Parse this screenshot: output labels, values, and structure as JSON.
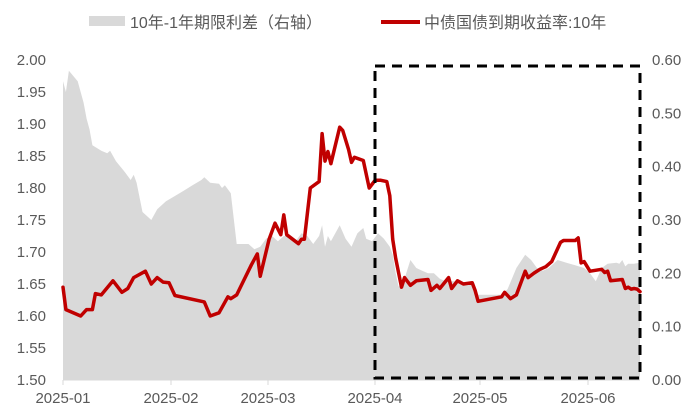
{
  "chart_data": {
    "type": "line+area",
    "title": "",
    "legend": [
      {
        "name": "10年-1年期限利差（右轴）",
        "type": "area",
        "color": "#D9D9D9",
        "axis": "right"
      },
      {
        "name": "中债国债到期收益率:10年",
        "type": "line",
        "color": "#C00000",
        "axis": "left"
      }
    ],
    "legend_position": "top",
    "grid": false,
    "x_ticks": [
      "2025-01",
      "2025-02",
      "2025-03",
      "2025-04",
      "2025-05",
      "2025-06"
    ],
    "y_left": {
      "ticks": [
        "1.50",
        "1.55",
        "1.60",
        "1.65",
        "1.70",
        "1.75",
        "1.80",
        "1.85",
        "1.90",
        "1.95",
        "2.00"
      ],
      "range": [
        1.5,
        2.0
      ]
    },
    "y_right": {
      "ticks": [
        "0.00",
        "0.10",
        "0.20",
        "0.30",
        "0.40",
        "0.50",
        "0.60"
      ],
      "range": [
        0.0,
        0.6
      ]
    },
    "x_date_range": [
      "2025-01-02",
      "2025-06-25"
    ],
    "series": [
      {
        "name": "中债国债到期收益率:10年",
        "axis": "left",
        "points": [
          [
            0,
            1.645
          ],
          [
            1,
            1.61
          ],
          [
            6,
            1.6
          ],
          [
            8,
            1.61
          ],
          [
            10,
            1.61
          ],
          [
            11,
            1.635
          ],
          [
            13,
            1.633
          ],
          [
            17,
            1.655
          ],
          [
            20,
            1.637
          ],
          [
            22,
            1.643
          ],
          [
            24,
            1.66
          ],
          [
            28,
            1.67
          ],
          [
            30,
            1.65
          ],
          [
            32,
            1.66
          ],
          [
            34,
            1.653
          ],
          [
            36,
            1.652
          ],
          [
            38,
            1.632
          ],
          [
            48,
            1.622
          ],
          [
            50,
            1.6
          ],
          [
            53,
            1.605
          ],
          [
            56,
            1.63
          ],
          [
            57,
            1.627
          ],
          [
            59,
            1.633
          ],
          [
            61,
            1.652
          ],
          [
            64,
            1.68
          ],
          [
            66,
            1.697
          ],
          [
            67,
            1.662
          ],
          [
            70,
            1.72
          ],
          [
            72,
            1.745
          ],
          [
            74,
            1.727
          ],
          [
            75,
            1.758
          ],
          [
            76,
            1.727
          ],
          [
            80,
            1.713
          ],
          [
            81,
            1.72
          ],
          [
            82,
            1.72
          ],
          [
            84,
            1.8
          ],
          [
            87,
            1.81
          ],
          [
            88,
            1.885
          ],
          [
            89,
            1.842
          ],
          [
            90,
            1.857
          ],
          [
            91,
            1.838
          ],
          [
            94,
            1.895
          ],
          [
            95,
            1.89
          ],
          [
            97,
            1.86
          ],
          [
            98,
            1.84
          ],
          [
            99,
            1.848
          ],
          [
            102,
            1.843
          ],
          [
            104,
            1.8
          ],
          [
            106,
            1.812
          ],
          [
            108,
            1.812
          ],
          [
            110,
            1.81
          ],
          [
            111,
            1.788
          ],
          [
            112,
            1.72
          ],
          [
            113,
            1.69
          ],
          [
            115,
            1.645
          ],
          [
            116,
            1.66
          ],
          [
            118,
            1.648
          ],
          [
            120,
            1.655
          ],
          [
            124,
            1.657
          ],
          [
            125,
            1.64
          ],
          [
            127,
            1.648
          ],
          [
            128,
            1.643
          ],
          [
            131,
            1.66
          ],
          [
            132,
            1.643
          ],
          [
            134,
            1.655
          ],
          [
            136,
            1.65
          ],
          [
            139,
            1.652
          ],
          [
            140,
            1.64
          ],
          [
            141,
            1.623
          ],
          [
            149,
            1.63
          ],
          [
            150,
            1.637
          ],
          [
            152,
            1.627
          ],
          [
            154,
            1.633
          ],
          [
            157,
            1.67
          ],
          [
            158,
            1.66
          ],
          [
            160,
            1.667
          ],
          [
            162,
            1.673
          ],
          [
            164,
            1.677
          ],
          [
            166,
            1.685
          ],
          [
            169,
            1.715
          ],
          [
            170,
            1.718
          ],
          [
            174,
            1.718
          ],
          [
            175,
            1.722
          ],
          [
            176,
            1.683
          ],
          [
            177,
            1.685
          ],
          [
            179,
            1.67
          ],
          [
            183,
            1.673
          ],
          [
            184,
            1.668
          ],
          [
            185,
            1.67
          ],
          [
            186,
            1.655
          ],
          [
            190,
            1.657
          ],
          [
            191,
            1.643
          ],
          [
            192,
            1.645
          ],
          [
            193,
            1.642
          ],
          [
            194,
            1.643
          ],
          [
            195,
            1.642
          ],
          [
            196,
            1.638
          ]
        ]
      },
      {
        "name": "10年-1年期限利差（右轴）",
        "axis": "right",
        "points": [
          [
            0,
            0.56
          ],
          [
            1,
            0.54
          ],
          [
            2,
            0.58
          ],
          [
            5,
            0.56
          ],
          [
            7,
            0.52
          ],
          [
            8,
            0.49
          ],
          [
            9,
            0.47
          ],
          [
            10,
            0.44
          ],
          [
            13,
            0.43
          ],
          [
            15,
            0.425
          ],
          [
            16,
            0.43
          ],
          [
            18,
            0.41
          ],
          [
            21,
            0.39
          ],
          [
            23,
            0.375
          ],
          [
            24,
            0.385
          ],
          [
            25,
            0.37
          ],
          [
            27,
            0.315
          ],
          [
            30,
            0.3
          ],
          [
            32,
            0.32
          ],
          [
            35,
            0.335
          ],
          [
            38,
            0.345
          ],
          [
            41,
            0.355
          ],
          [
            44,
            0.365
          ],
          [
            47,
            0.375
          ],
          [
            48,
            0.38
          ],
          [
            50,
            0.37
          ],
          [
            53,
            0.368
          ],
          [
            54,
            0.36
          ],
          [
            55,
            0.365
          ],
          [
            57,
            0.35
          ],
          [
            59,
            0.255
          ],
          [
            61,
            0.255
          ],
          [
            63,
            0.255
          ],
          [
            65,
            0.245
          ],
          [
            67,
            0.25
          ],
          [
            69,
            0.265
          ],
          [
            71,
            0.27
          ],
          [
            73,
            0.26
          ],
          [
            75,
            0.27
          ],
          [
            77,
            0.27
          ],
          [
            79,
            0.26
          ],
          [
            81,
            0.275
          ],
          [
            83,
            0.27
          ],
          [
            85,
            0.255
          ],
          [
            87,
            0.27
          ],
          [
            88,
            0.29
          ],
          [
            89,
            0.25
          ],
          [
            90,
            0.27
          ],
          [
            91,
            0.26
          ],
          [
            94,
            0.29
          ],
          [
            96,
            0.265
          ],
          [
            98,
            0.25
          ],
          [
            100,
            0.275
          ],
          [
            102,
            0.285
          ],
          [
            103,
            0.265
          ],
          [
            105,
            0.26
          ],
          [
            107,
            0.275
          ],
          [
            109,
            0.265
          ],
          [
            111,
            0.25
          ],
          [
            112,
            0.235
          ],
          [
            113,
            0.2
          ],
          [
            114,
            0.175
          ],
          [
            116,
            0.19
          ],
          [
            118,
            0.225
          ],
          [
            120,
            0.21
          ],
          [
            122,
            0.205
          ],
          [
            124,
            0.2
          ],
          [
            126,
            0.2
          ],
          [
            128,
            0.19
          ],
          [
            130,
            0.185
          ],
          [
            134,
            0.185
          ],
          [
            137,
            0.18
          ],
          [
            139,
            0.18
          ],
          [
            141,
            0.16
          ],
          [
            149,
            0.16
          ],
          [
            151,
            0.17
          ],
          [
            154,
            0.21
          ],
          [
            157,
            0.235
          ],
          [
            159,
            0.225
          ],
          [
            161,
            0.21
          ],
          [
            163,
            0.205
          ],
          [
            165,
            0.21
          ],
          [
            168,
            0.225
          ],
          [
            171,
            0.22
          ],
          [
            174,
            0.215
          ],
          [
            177,
            0.21
          ],
          [
            179,
            0.2
          ],
          [
            181,
            0.185
          ],
          [
            183,
            0.21
          ],
          [
            185,
            0.218
          ],
          [
            188,
            0.22
          ],
          [
            189,
            0.218
          ],
          [
            190,
            0.225
          ],
          [
            191,
            0.213
          ],
          [
            192,
            0.218
          ],
          [
            194,
            0.218
          ],
          [
            196,
            0.22
          ]
        ]
      }
    ],
    "annotations": [
      {
        "type": "dashed-rectangle",
        "x_start": "2025-04-01",
        "x_end": "2025-06-25",
        "y_left_range": [
          1.51,
          1.99
        ],
        "color": "#000000"
      }
    ]
  }
}
